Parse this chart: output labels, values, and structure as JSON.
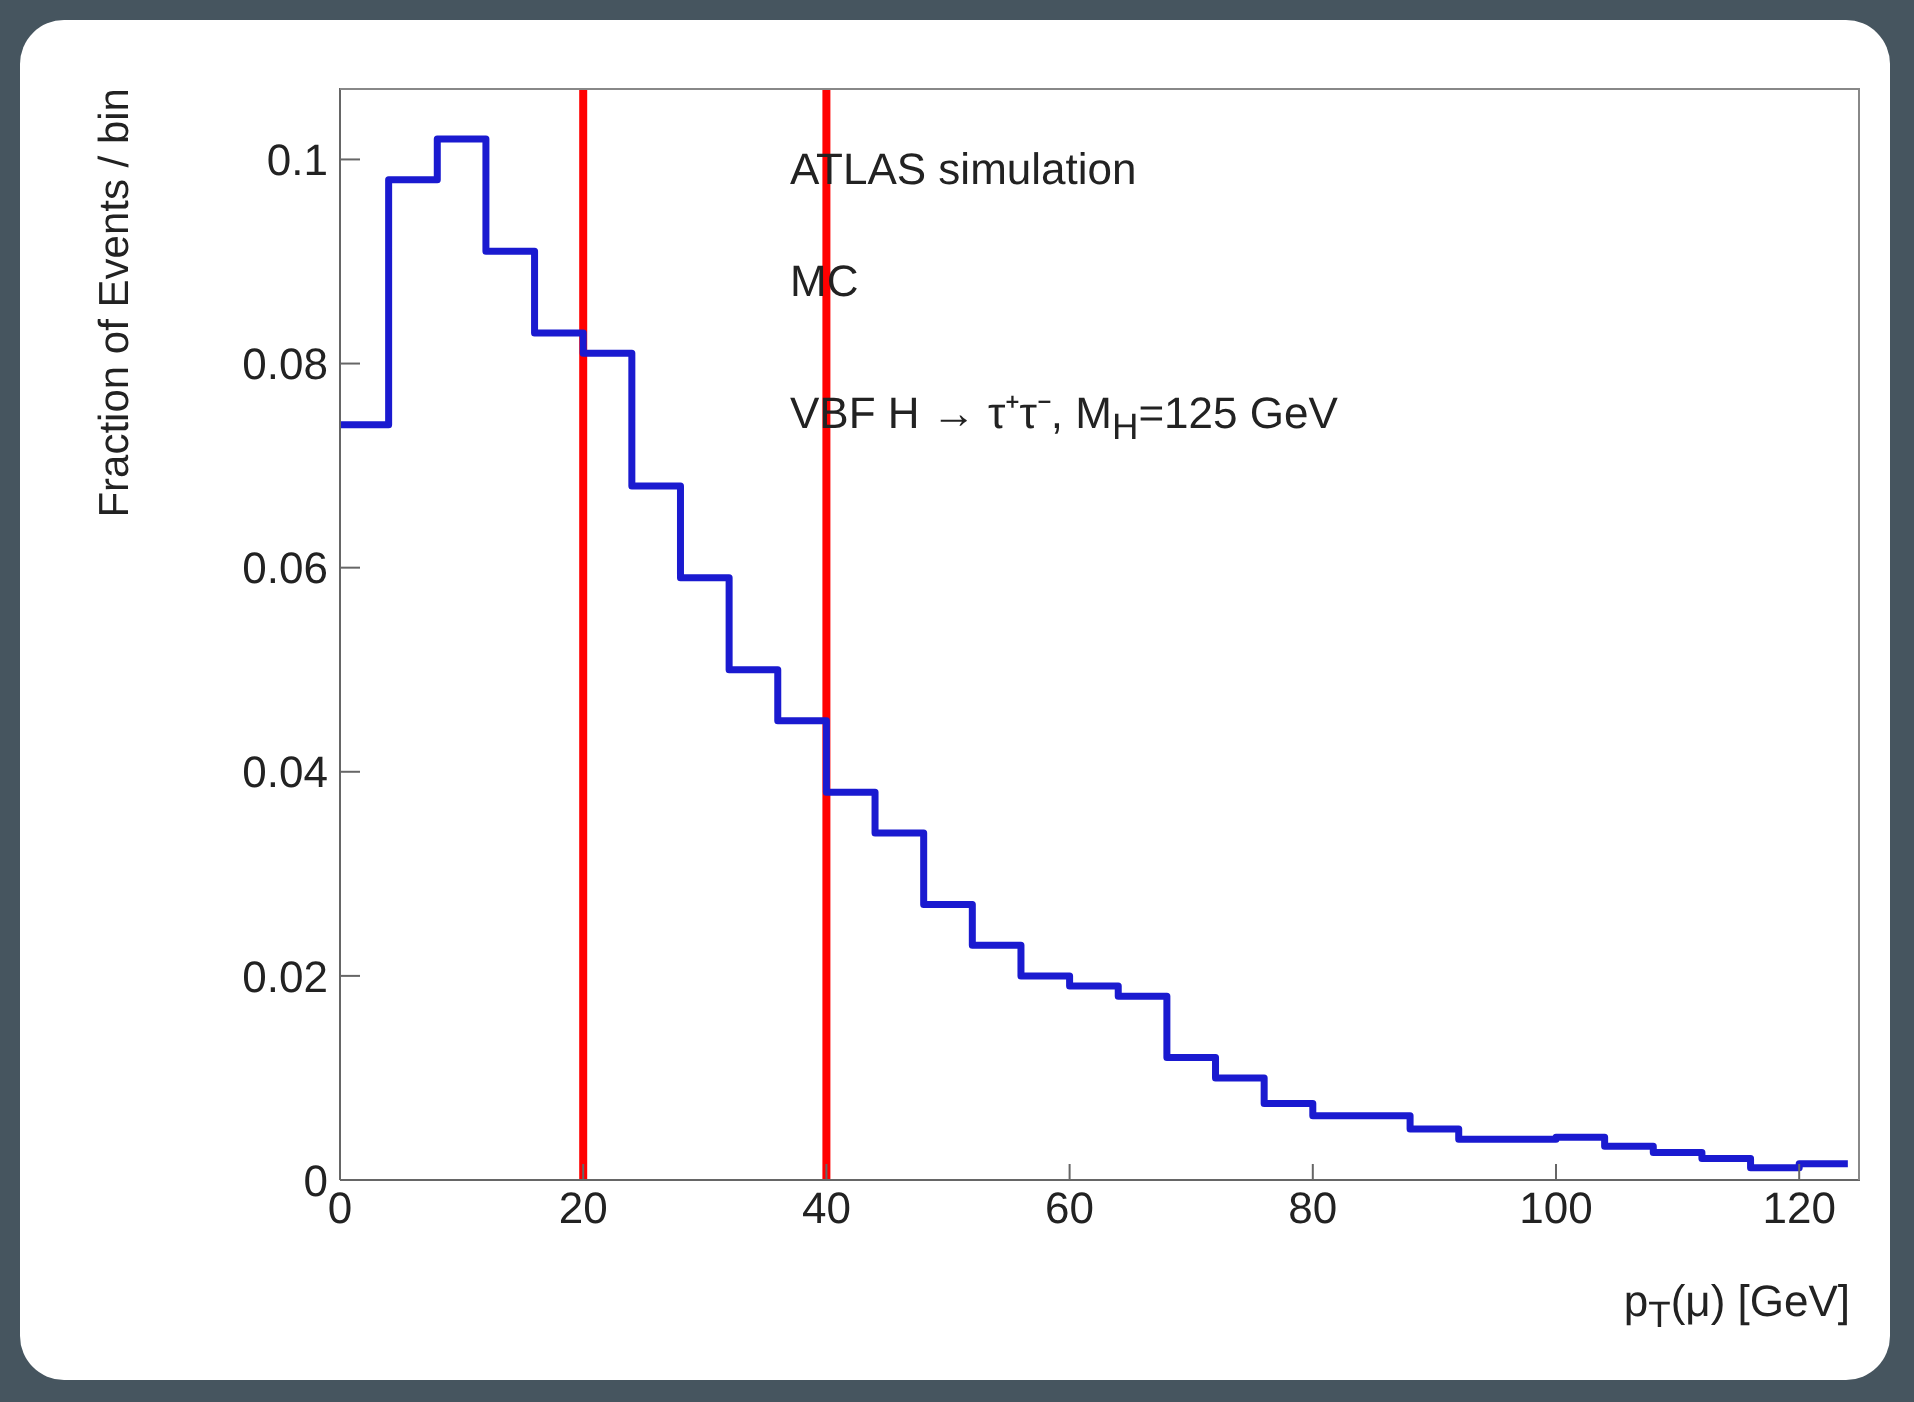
{
  "chart_data": {
    "type": "histogram",
    "xlabel": "p$_{T}$(μ) [GeV]",
    "ylabel": "Fraction of Events / bin",
    "annotations": [
      "ATLAS simulation",
      "MC",
      "VBF H → τ⁺τ⁻, M$_{H}$=125 GeV"
    ],
    "bins": [
      0,
      4,
      8,
      12,
      16,
      20,
      24,
      28,
      32,
      36,
      40,
      44,
      48,
      52,
      56,
      60,
      64,
      68,
      72,
      76,
      80,
      84,
      88,
      92,
      96,
      100,
      104,
      108,
      112,
      116,
      120,
      124
    ],
    "values": [
      0.074,
      0.098,
      0.102,
      0.091,
      0.083,
      0.081,
      0.068,
      0.059,
      0.05,
      0.045,
      0.038,
      0.034,
      0.027,
      0.023,
      0.02,
      0.019,
      0.018,
      0.012,
      0.01,
      0.0075,
      0.0063,
      0.0063,
      0.005,
      0.004,
      0.004,
      0.0042,
      0.0033,
      0.0027,
      0.0021,
      0.0012,
      0.0016
    ],
    "color": "#1a1ad0",
    "xlim": [
      0,
      125
    ],
    "xticks": [
      0,
      20,
      40,
      60,
      80,
      100,
      120
    ],
    "ylim": [
      0,
      0.107
    ],
    "yticks": [
      0,
      0.02,
      0.04,
      0.06,
      0.08,
      0.1
    ],
    "ref_lines": [
      {
        "axis": "x",
        "value": 20,
        "color": "#ff0000"
      },
      {
        "axis": "x",
        "value": 40,
        "color": "#ff0000"
      }
    ],
    "grid": false,
    "legend": false
  }
}
